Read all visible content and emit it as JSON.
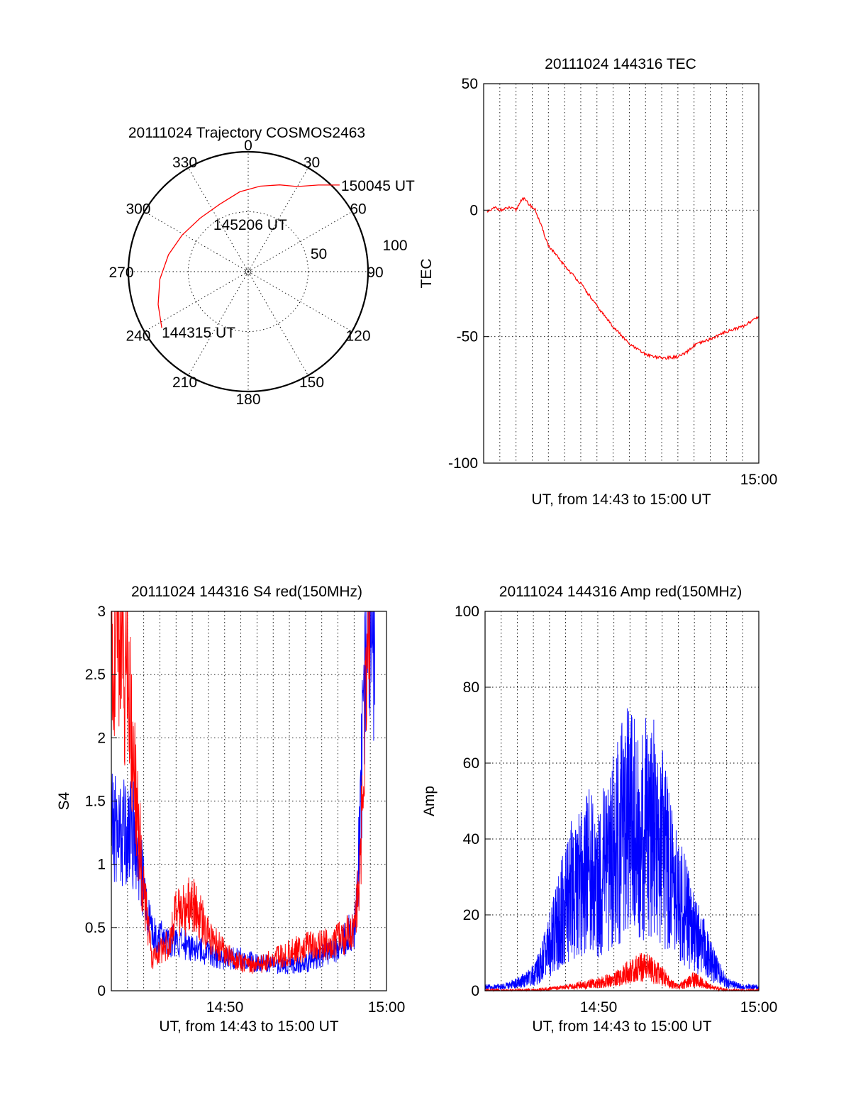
{
  "chart_data": [
    {
      "id": "trajectory",
      "type": "polar",
      "title": "20111024 Trajectory COSMOS2463",
      "azimuth_labels": [
        "0",
        "30",
        "60",
        "90",
        "120",
        "150",
        "180",
        "210",
        "240",
        "270",
        "300",
        "330"
      ],
      "radial_labels": [
        "50",
        "100"
      ],
      "rlim": [
        0,
        100
      ],
      "series": [
        {
          "color": "#ff0000",
          "points": [
            {
              "az": 237,
              "r": 86
            },
            {
              "az": 250,
              "r": 80
            },
            {
              "az": 265,
              "r": 74
            },
            {
              "az": 282,
              "r": 68
            },
            {
              "az": 299,
              "r": 63
            },
            {
              "az": 318,
              "r": 60
            },
            {
              "az": 337,
              "r": 61
            },
            {
              "az": 354,
              "r": 67
            },
            {
              "az": 8,
              "r": 72
            },
            {
              "az": 20,
              "r": 77
            },
            {
              "az": 30,
              "r": 82
            },
            {
              "az": 39,
              "r": 93
            }
          ]
        }
      ],
      "annotations": [
        {
          "text": "144315 UT",
          "az": 237,
          "r": 86
        },
        {
          "text": "145206 UT",
          "az": 326,
          "r": 52
        },
        {
          "text": "150045 UT",
          "az": 39,
          "r": 93
        }
      ],
      "grid": true
    },
    {
      "id": "tec",
      "type": "line",
      "title": "20111024 144316 TEC",
      "xlabel": "UT, from 14:43 to 15:00 UT",
      "ylabel": "TEC",
      "xlim_minutes": [
        -17,
        0
      ],
      "ylim": [
        -100,
        50
      ],
      "yticks": [
        "50",
        "0",
        "-50",
        "-100"
      ],
      "xticks": [
        "15:00"
      ],
      "grid": true,
      "series": [
        {
          "color": "#ff0000",
          "x": [
            -16.8,
            -16.3,
            -15.9,
            -15.4,
            -15.0,
            -14.6,
            -14.3,
            -13.8,
            -13.0,
            -12.0,
            -11.0,
            -10.0,
            -9.0,
            -8.0,
            -7.0,
            -6.0,
            -5.0,
            -4.5,
            -4.0,
            -3.0,
            -2.0,
            -1.0,
            0.0
          ],
          "y": [
            -1,
            1,
            0,
            1,
            0,
            5,
            3,
            0,
            -14,
            -22,
            -29,
            -38,
            -46,
            -53,
            -57,
            -58.5,
            -58,
            -56.5,
            -53.5,
            -51,
            -48,
            -46,
            -42
          ]
        }
      ]
    },
    {
      "id": "s4",
      "type": "line",
      "title": "20111024 144316 S4 red(150MHz)",
      "xlabel": "UT, from 14:43 to 15:00 UT",
      "ylabel": "S4",
      "xlim_minutes": [
        -17,
        0
      ],
      "ylim": [
        0,
        3
      ],
      "yticks": [
        "3",
        "2.5",
        "2",
        "1.5",
        "1",
        "0.5",
        "0"
      ],
      "xticks": [
        "14:50",
        "15:00"
      ],
      "grid": true,
      "series": [
        {
          "color": "#0000ff",
          "x": [
            -17,
            -16.5,
            -16,
            -15.5,
            -15,
            -14.5,
            -14,
            -13,
            -12,
            -11,
            -10,
            -9,
            -8,
            -7,
            -6,
            -5,
            -4,
            -3,
            -2,
            -1.8,
            -1.5,
            -1.3,
            -1.0,
            -0.7
          ],
          "y": [
            1.3,
            1.25,
            1.3,
            1.2,
            0.8,
            0.45,
            0.42,
            0.38,
            0.36,
            0.3,
            0.25,
            0.26,
            0.22,
            0.21,
            0.2,
            0.22,
            0.28,
            0.35,
            0.5,
            0.8,
            1.8,
            3.0,
            3.0,
            3.0
          ]
        },
        {
          "color": "#ff0000",
          "x": [
            -17,
            -16.5,
            -16,
            -15.5,
            -15,
            -14.5,
            -14,
            -13.5,
            -13,
            -12,
            -11,
            -10,
            -9,
            -8,
            -7,
            -6,
            -5,
            -4,
            -3,
            -2,
            -1.7,
            -1.4,
            -1.2,
            -1.0
          ],
          "y": [
            3.0,
            3.0,
            2.6,
            1.5,
            0.8,
            0.25,
            0.3,
            0.38,
            0.6,
            0.7,
            0.45,
            0.3,
            0.22,
            0.2,
            0.25,
            0.3,
            0.35,
            0.36,
            0.4,
            0.5,
            0.8,
            1.6,
            2.8,
            3.0
          ]
        }
      ]
    },
    {
      "id": "amp",
      "type": "line",
      "title": "20111024 144316 Amp red(150MHz)",
      "xlabel": "UT, from 14:43 to 15:00 UT",
      "ylabel": "Amp",
      "xlim_minutes": [
        -17,
        0
      ],
      "ylim": [
        0,
        100
      ],
      "yticks": [
        "100",
        "80",
        "60",
        "40",
        "20",
        "0"
      ],
      "xticks": [
        "14:50",
        "15:00"
      ],
      "grid": true,
      "series": [
        {
          "color": "#0000ff",
          "x": [
            -17,
            -16,
            -15,
            -14,
            -13.5,
            -13,
            -12.5,
            -12,
            -11.5,
            -11,
            -10.5,
            -10,
            -9.5,
            -9,
            -8.5,
            -8,
            -7.5,
            -7,
            -6.5,
            -6,
            -5.5,
            -5,
            -4.5,
            -4,
            -3.5,
            -3,
            -2,
            -1,
            0
          ],
          "y": [
            1,
            1,
            2,
            4,
            7,
            12,
            18,
            23,
            28,
            30,
            32,
            28,
            33,
            38,
            42,
            45,
            40,
            44,
            42,
            38,
            30,
            25,
            20,
            15,
            12,
            8,
            2,
            1,
            1
          ]
        },
        {
          "color": "#ff0000",
          "x": [
            -17,
            -14,
            -13,
            -12,
            -11,
            -10,
            -9,
            -8.5,
            -8,
            -7.5,
            -7,
            -6.5,
            -6,
            -5.5,
            -5,
            -4.5,
            -4,
            -3.5,
            -3,
            -2.5,
            -2,
            0
          ],
          "y": [
            0,
            0,
            0.5,
            1,
            1.5,
            2,
            3,
            4,
            5,
            6,
            6,
            5,
            4,
            2,
            1,
            2,
            3,
            2,
            1,
            0.5,
            0,
            0
          ]
        }
      ]
    }
  ]
}
